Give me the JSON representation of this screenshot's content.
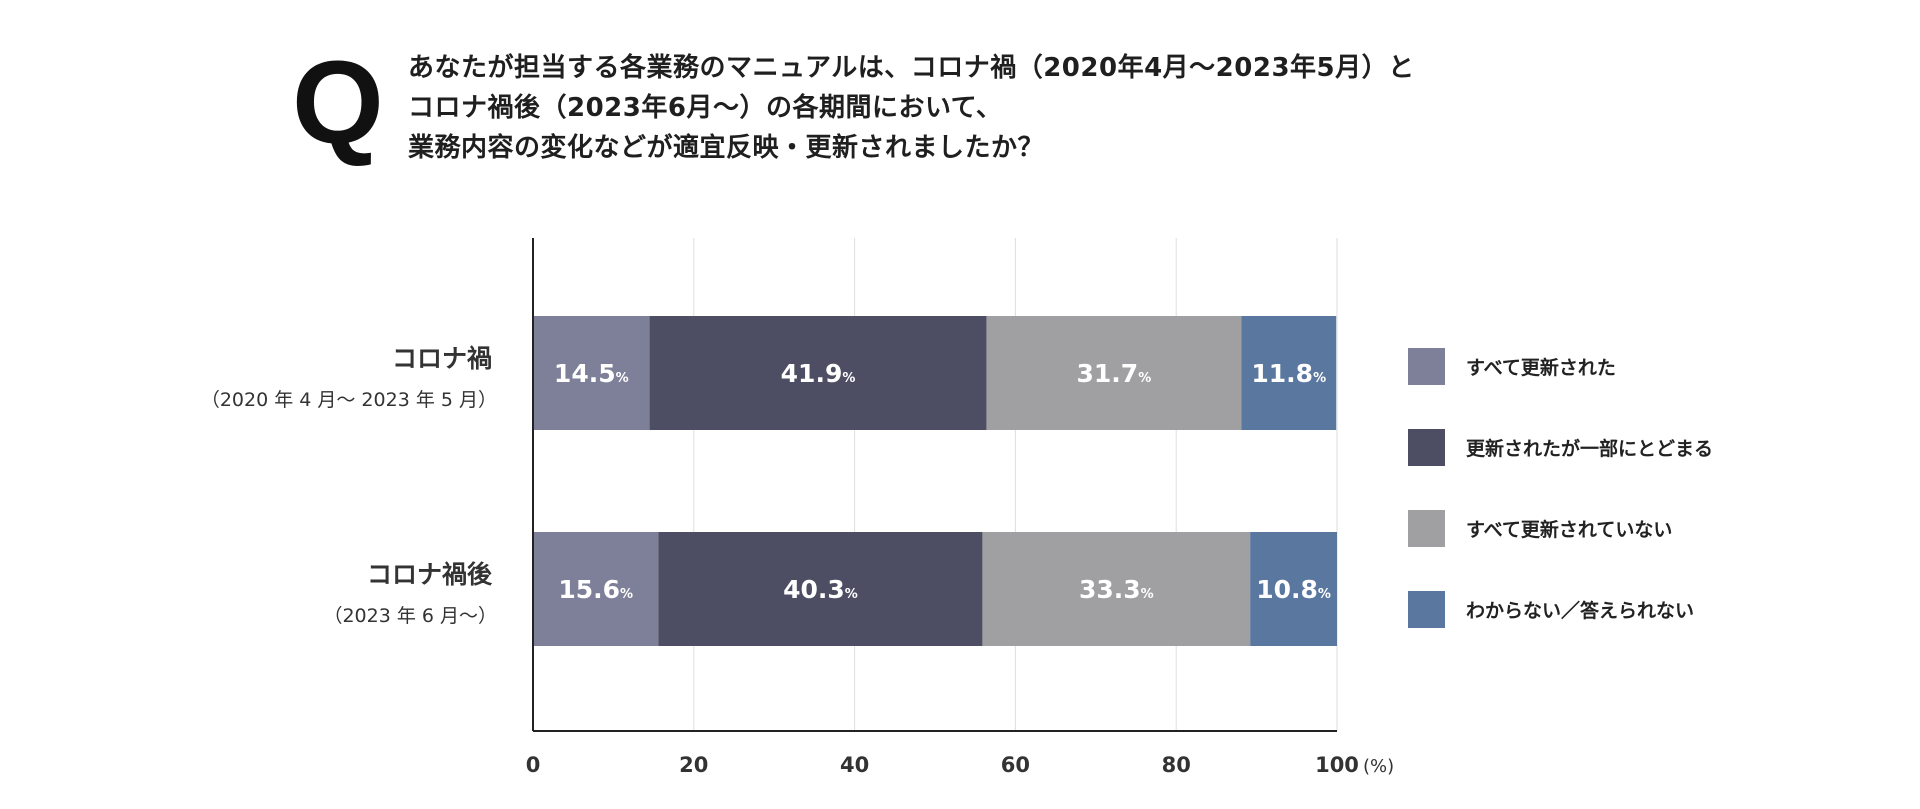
{
  "header": {
    "q_mark": "Q",
    "question_lines": [
      "あなたが担当する各業務のマニュアルは、コロナ禍（2020年4月～2023年5月）と",
      "コロナ禍後（2023年6月～）の各期間において、",
      "業務内容の変化などが適宜反映・更新されましたか？"
    ]
  },
  "chart_data": {
    "type": "bar",
    "orientation": "horizontal",
    "stacked": true,
    "title": "あなたが担当する各業務のマニュアルは、コロナ禍（2020年4月～2023年5月）とコロナ禍後（2023年6月～）の各期間において、業務内容の変化などが適宜反映・更新されましたか？",
    "categories": [
      {
        "name": "コロナ禍",
        "sub": "（2020 年 4 月～ 2023 年 5 月）"
      },
      {
        "name": "コロナ禍後",
        "sub": "（2023 年 6 月～）"
      }
    ],
    "series": [
      {
        "name": "すべて更新された",
        "color": "#7e7f98",
        "values": [
          14.5,
          15.6
        ]
      },
      {
        "name": "更新されたが一部にとどまる",
        "color": "#4d4e63",
        "values": [
          41.9,
          40.3
        ]
      },
      {
        "name": "すべて更新されていない",
        "color": "#a0a0a3",
        "values": [
          31.7,
          33.3
        ]
      },
      {
        "name": "わからない／答えられない",
        "color": "#5a77a0",
        "values": [
          11.8,
          10.8
        ]
      }
    ],
    "value_suffix": "%",
    "xlim": [
      0,
      100
    ],
    "xticks": [
      0,
      20,
      40,
      60,
      80,
      100
    ],
    "x_unit": "(%)",
    "grid": true,
    "legend_position": "right"
  }
}
